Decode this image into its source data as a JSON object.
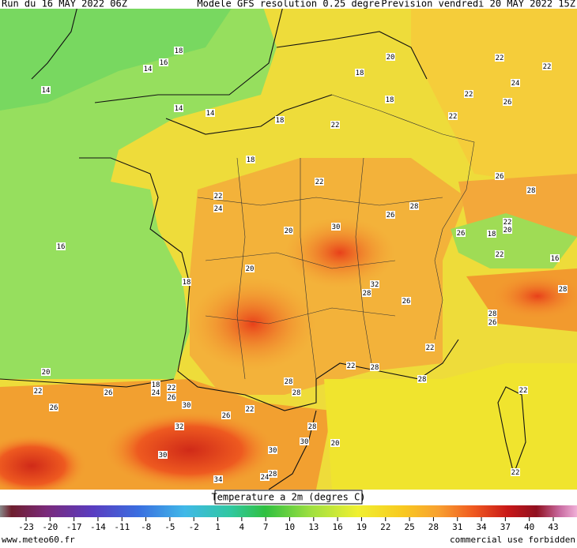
{
  "header": {
    "run": "Run du 16 MAY 2022 06Z",
    "model": "Modele GFS resolution 0.25 degre",
    "forecast": "Prevision vendredi 20 MAY 2022 15Z"
  },
  "map": {
    "contour_labels": [
      18,
      16,
      14,
      14,
      20,
      22,
      22,
      18,
      24,
      22,
      26,
      18,
      14,
      14,
      22,
      18,
      22,
      18,
      26,
      22,
      28,
      22,
      24,
      26,
      28,
      22,
      20,
      16,
      30,
      20,
      26,
      18,
      16,
      22,
      20,
      18,
      32,
      28,
      26,
      28,
      28,
      26,
      22,
      22,
      28,
      20,
      28,
      18,
      22,
      24,
      26,
      28,
      28,
      22,
      26,
      22,
      26,
      30,
      26,
      22,
      32,
      28,
      20,
      30,
      30,
      30,
      34,
      24,
      28,
      22
    ]
  },
  "legend": {
    "title": "Temperature a 2m (degres C)",
    "ticks": [
      -23,
      -20,
      -17,
      -14,
      -11,
      -8,
      -5,
      -2,
      1,
      4,
      7,
      10,
      13,
      16,
      19,
      22,
      25,
      28,
      31,
      34,
      37,
      40,
      43
    ]
  },
  "footer": {
    "site": "www.meteo60.fr",
    "notice": "commercial use forbidden"
  }
}
